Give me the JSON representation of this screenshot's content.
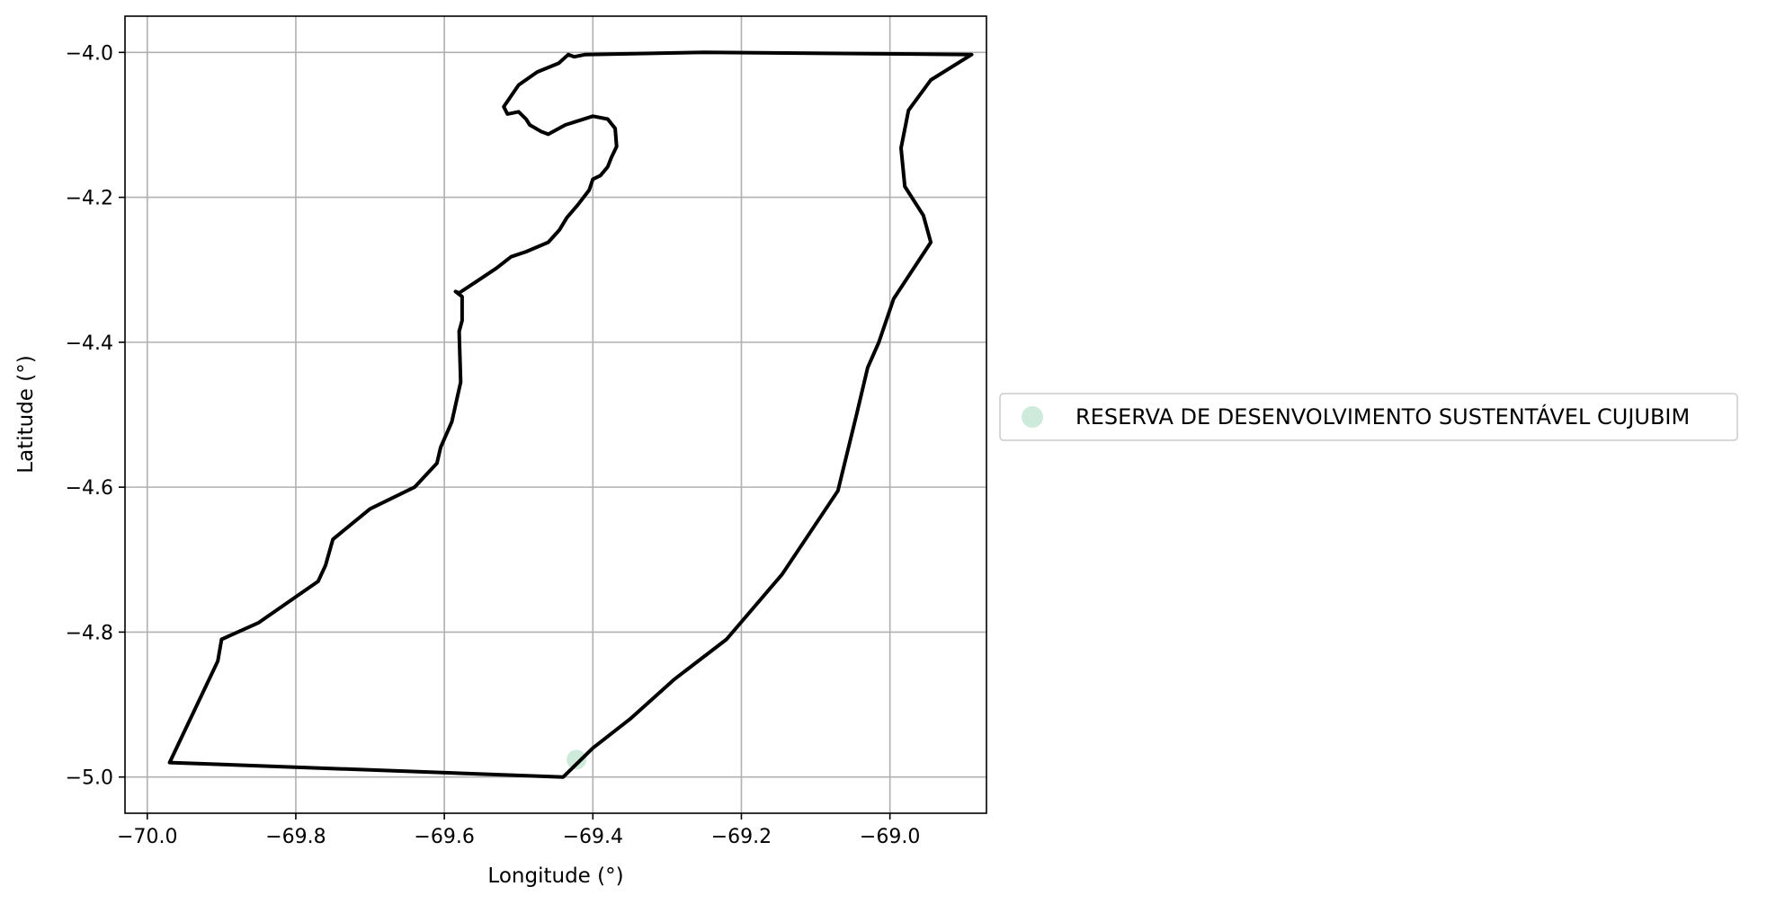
{
  "chart_data": {
    "type": "map",
    "xlabel": "Longitude (°)",
    "ylabel": "Latitude (°)",
    "xlim": [
      -70.03,
      -68.87
    ],
    "ylim": [
      -5.05,
      -3.95
    ],
    "grid": true,
    "xticks": [
      -70.0,
      -69.8,
      -69.6,
      -69.4,
      -69.2,
      -69.0
    ],
    "yticks": [
      -4.0,
      -4.2,
      -4.4,
      -4.6,
      -4.8,
      -5.0
    ],
    "xtick_labels": [
      "−70.0",
      "−69.8",
      "−69.6",
      "−69.4",
      "−69.2",
      "−69.0"
    ],
    "ytick_labels": [
      "−4.0",
      "−4.2",
      "−4.4",
      "−4.6",
      "−4.8",
      "−5.0"
    ],
    "legend": {
      "placement": "center-right-outside",
      "entries": [
        {
          "label": "RESERVA DE DESENVOLVIMENTO SUSTENTÁVEL CUJUBIM",
          "color": "#cdeadb"
        }
      ]
    },
    "boundary": {
      "color": "#000000",
      "points": [
        [
          -69.97,
          -4.98
        ],
        [
          -69.44,
          -5.0
        ],
        [
          -69.4,
          -4.96
        ],
        [
          -69.35,
          -4.92
        ],
        [
          -69.29,
          -4.865
        ],
        [
          -69.22,
          -4.81
        ],
        [
          -69.145,
          -4.72
        ],
        [
          -69.07,
          -4.605
        ],
        [
          -69.045,
          -4.5
        ],
        [
          -69.03,
          -4.435
        ],
        [
          -69.015,
          -4.4
        ],
        [
          -68.995,
          -4.34
        ],
        [
          -68.945,
          -4.262
        ],
        [
          -68.955,
          -4.225
        ],
        [
          -68.98,
          -4.185
        ],
        [
          -68.985,
          -4.132
        ],
        [
          -68.975,
          -4.08
        ],
        [
          -68.945,
          -4.038
        ],
        [
          -68.89,
          -4.003
        ],
        [
          -69.25,
          -4.0
        ],
        [
          -69.41,
          -4.003
        ],
        [
          -69.425,
          -4.006
        ],
        [
          -69.433,
          -4.003
        ],
        [
          -69.446,
          -4.015
        ],
        [
          -69.475,
          -4.027
        ],
        [
          -69.5,
          -4.045
        ],
        [
          -69.51,
          -4.06
        ],
        [
          -69.52,
          -4.075
        ],
        [
          -69.515,
          -4.085
        ],
        [
          -69.5,
          -4.082
        ],
        [
          -69.49,
          -4.092
        ],
        [
          -69.485,
          -4.1
        ],
        [
          -69.47,
          -4.109
        ],
        [
          -69.46,
          -4.113
        ],
        [
          -69.437,
          -4.1
        ],
        [
          -69.4,
          -4.088
        ],
        [
          -69.38,
          -4.092
        ],
        [
          -69.37,
          -4.105
        ],
        [
          -69.368,
          -4.13
        ],
        [
          -69.375,
          -4.145
        ],
        [
          -69.38,
          -4.158
        ],
        [
          -69.39,
          -4.17
        ],
        [
          -69.4,
          -4.175
        ],
        [
          -69.405,
          -4.19
        ],
        [
          -69.42,
          -4.21
        ],
        [
          -69.435,
          -4.228
        ],
        [
          -69.445,
          -4.245
        ],
        [
          -69.46,
          -4.262
        ],
        [
          -69.49,
          -4.275
        ],
        [
          -69.51,
          -4.282
        ],
        [
          -69.53,
          -4.298
        ],
        [
          -69.555,
          -4.315
        ],
        [
          -69.58,
          -4.332
        ],
        [
          -69.585,
          -4.33
        ],
        [
          -69.576,
          -4.337
        ],
        [
          -69.576,
          -4.37
        ],
        [
          -69.58,
          -4.385
        ],
        [
          -69.578,
          -4.455
        ],
        [
          -69.59,
          -4.51
        ],
        [
          -69.605,
          -4.545
        ],
        [
          -69.61,
          -4.567
        ],
        [
          -69.64,
          -4.6
        ],
        [
          -69.7,
          -4.63
        ],
        [
          -69.75,
          -4.672
        ],
        [
          -69.76,
          -4.708
        ],
        [
          -69.77,
          -4.73
        ],
        [
          -69.85,
          -4.787
        ],
        [
          -69.9,
          -4.81
        ],
        [
          -69.905,
          -4.84
        ],
        [
          -69.97,
          -4.98
        ]
      ]
    },
    "points": [
      {
        "x": -69.422,
        "y": -4.976,
        "series": "RESERVA DE DESENVOLVIMENTO SUSTENTÁVEL CUJUBIM"
      }
    ]
  }
}
